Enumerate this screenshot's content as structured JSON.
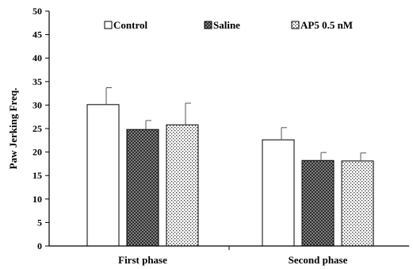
{
  "chart_data": {
    "type": "bar",
    "title": "",
    "xlabel": "",
    "ylabel": "Paw Jerking Freq.",
    "categories": [
      "First phase",
      "Second phase"
    ],
    "ylim": [
      0,
      50
    ],
    "yticks": [
      0,
      5,
      10,
      15,
      20,
      25,
      30,
      35,
      40,
      45,
      50
    ],
    "grid": false,
    "legend_position": "top",
    "series": [
      {
        "name": "Control",
        "pattern": "white",
        "values": [
          30.1,
          22.6
        ],
        "errors": [
          3.6,
          2.6
        ]
      },
      {
        "name": "Saline",
        "pattern": "crosshatch",
        "values": [
          24.8,
          18.2
        ],
        "errors": [
          1.9,
          1.7
        ]
      },
      {
        "name": "AP5 0.5 nM",
        "pattern": "dotted",
        "values": [
          25.8,
          18.1
        ],
        "errors": [
          4.6,
          1.7
        ]
      }
    ]
  }
}
